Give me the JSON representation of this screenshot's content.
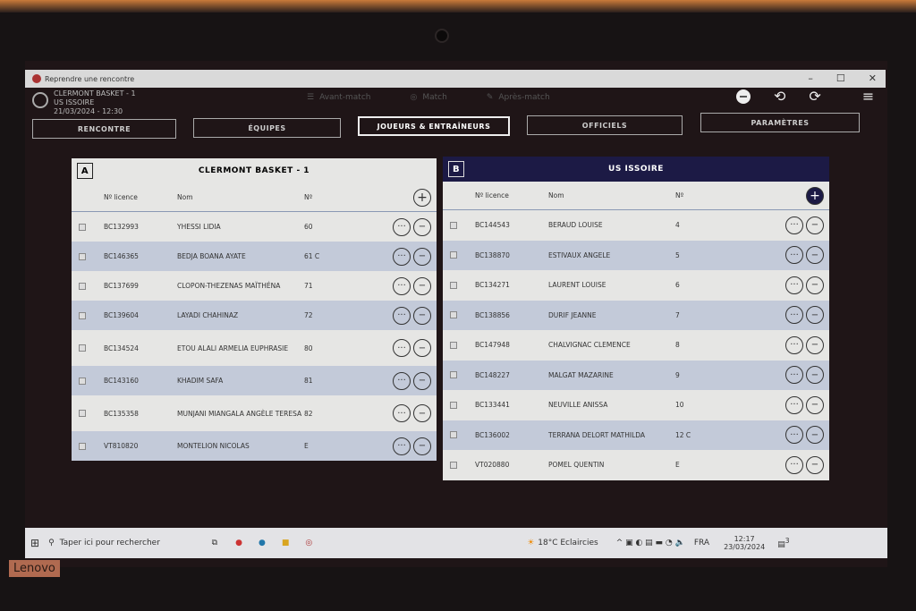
{
  "window": {
    "title": "Reprendre une rencontre",
    "controls": [
      "–",
      "☐",
      "✕"
    ]
  },
  "match": {
    "home": "CLERMONT BASKET - 1",
    "away": "US ISSOIRE",
    "datetime": "21/03/2024 - 12:30"
  },
  "steps": [
    {
      "label": "Avant-match",
      "icon": "team-icon"
    },
    {
      "label": "Match",
      "icon": "basketball-icon"
    },
    {
      "label": "Après-match",
      "icon": "edit-icon"
    }
  ],
  "tabs": [
    "RENCONTRE",
    "ÉQUIPES",
    "JOUEURS & ENTRAÎNEURS",
    "OFFICIELS",
    "PARAMÈTRES"
  ],
  "active_tab": "JOUEURS & ENTRAÎNEURS",
  "columns": {
    "licence": "Nº licence",
    "nom": "Nom",
    "num": "Nº"
  },
  "teamA": {
    "badge": "A",
    "name": "CLERMONT BASKET - 1",
    "players": [
      [
        "BC132993",
        "YHESSI LIDIA",
        "60"
      ],
      [
        "BC146365",
        "BEDJA BOANA AYATE",
        "61 C"
      ],
      [
        "BC137699",
        "CLOPON-THEZENAS MAÏTHÉNA",
        "71"
      ],
      [
        "BC139604",
        "LAYADI CHAHINAZ",
        "72"
      ],
      [
        "BC134524",
        "ETOU ALALI ARMELIA EUPHRASIE",
        "80"
      ],
      [
        "BC143160",
        "KHADIM SAFA",
        "81"
      ],
      [
        "BC135358",
        "MUNJANI MIANGALA ANGÈLE TERESA",
        "82"
      ],
      [
        "VT810820",
        "MONTELION NICOLAS",
        "E"
      ]
    ]
  },
  "teamB": {
    "badge": "B",
    "name": "US ISSOIRE",
    "players": [
      [
        "BC144543",
        "BERAUD LOUISE",
        "4"
      ],
      [
        "BC138870",
        "ESTIVAUX ANGELE",
        "5"
      ],
      [
        "BC134271",
        "LAURENT LOUISE",
        "6"
      ],
      [
        "BC138856",
        "DURIF JEANNE",
        "7"
      ],
      [
        "BC147948",
        "CHALVIGNAC CLEMENCE",
        "8"
      ],
      [
        "BC148227",
        "MALGAT MAZARINE",
        "9"
      ],
      [
        "BC133441",
        "NEUVILLE ANISSA",
        "10"
      ],
      [
        "BC136002",
        "TERRANA DELORT MATHILDA",
        "12 C"
      ],
      [
        "VT020880",
        "POMEL QUENTIN",
        "E"
      ]
    ]
  },
  "buttons": {
    "more": "···",
    "remove": "−",
    "add": "+"
  },
  "taskbar": {
    "search_placeholder": "Taper ici pour rechercher",
    "weather": "18°C  Eclaircies",
    "lang": "FRA",
    "time": "12:17",
    "date": "23/03/2024",
    "notif_count": "3"
  },
  "brand": "Lenovo",
  "colors": {
    "teamB_header": "#1c1a45",
    "row_alt": "#c3cad9"
  }
}
